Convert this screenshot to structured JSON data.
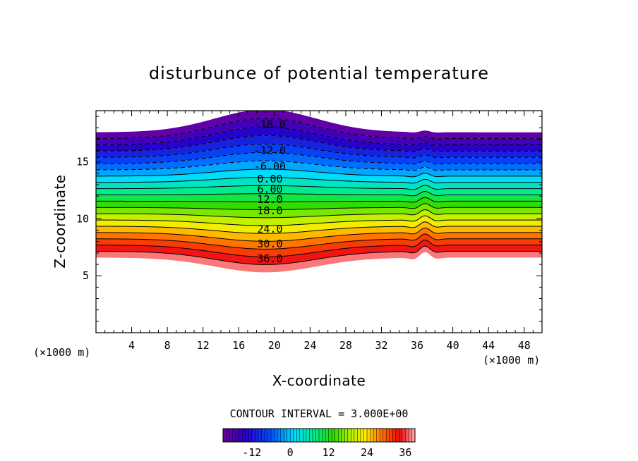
{
  "chart_data": {
    "type": "contour",
    "title": "disturbunce of potential temperature",
    "xlabel": "X-coordinate",
    "ylabel": "Z-coordinate",
    "x_unit": "(×1000 m)",
    "y_unit": "(×1000 m)",
    "xlim": [
      0,
      50
    ],
    "ylim": [
      0,
      19.5
    ],
    "x_ticks": [
      4,
      8,
      12,
      16,
      20,
      24,
      28,
      32,
      36,
      40,
      44,
      48
    ],
    "y_ticks": [
      5,
      10,
      15
    ],
    "contour_interval_label": "CONTOUR INTERVAL = 3.000E+00",
    "contour_interval": 3,
    "levels": [
      -21,
      -18,
      -15,
      -12,
      -9,
      -6,
      -3,
      0,
      3,
      6,
      9,
      12,
      15,
      18,
      21,
      24,
      27,
      30,
      33,
      36,
      39
    ],
    "contour_labels": [
      {
        "text": "-18.0",
        "x": 19.5,
        "z": 18.3
      },
      {
        "text": "-12.0",
        "x": 19.5,
        "z": 16.0
      },
      {
        "text": "-6.00",
        "x": 19.5,
        "z": 14.6
      },
      {
        "text": "0.00",
        "x": 19.5,
        "z": 13.5
      },
      {
        "text": "6.00",
        "x": 19.5,
        "z": 12.6
      },
      {
        "text": "12.0",
        "x": 19.5,
        "z": 11.7
      },
      {
        "text": "18.0",
        "x": 19.5,
        "z": 10.7
      },
      {
        "text": "24.0",
        "x": 19.5,
        "z": 9.1
      },
      {
        "text": "30.0",
        "x": 19.5,
        "z": 7.8
      },
      {
        "text": "36.0",
        "x": 19.5,
        "z": 6.5
      }
    ],
    "colorbar": {
      "min": -21,
      "max": 39,
      "tick_labels": [
        "-12",
        "0",
        "12",
        "24",
        "36"
      ],
      "tick_values": [
        -12,
        0,
        12,
        24,
        36
      ]
    },
    "grid": false
  }
}
